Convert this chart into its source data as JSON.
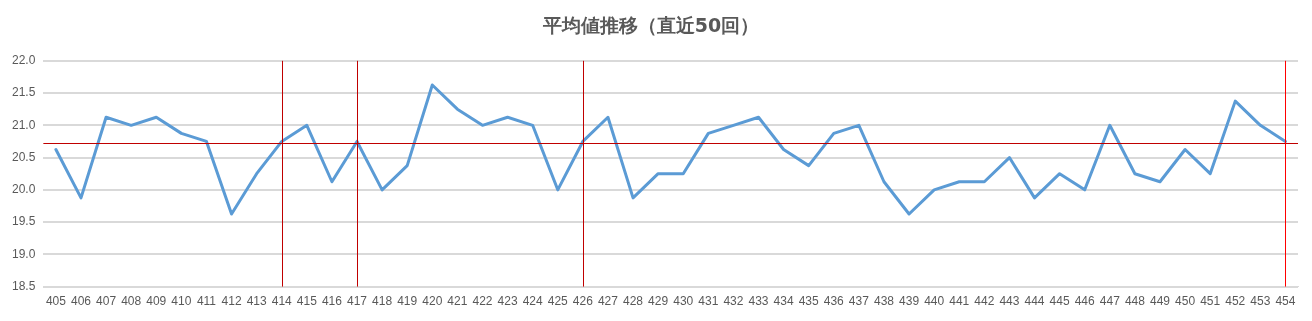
{
  "chart_data": {
    "type": "line",
    "title": "平均値推移（直近50回）",
    "categories": [
      "405",
      "406",
      "407",
      "408",
      "409",
      "410",
      "411",
      "412",
      "413",
      "414",
      "415",
      "416",
      "417",
      "418",
      "419",
      "420",
      "421",
      "422",
      "423",
      "424",
      "425",
      "426",
      "427",
      "428",
      "429",
      "430",
      "431",
      "432",
      "433",
      "434",
      "435",
      "436",
      "437",
      "438",
      "439",
      "440",
      "441",
      "442",
      "443",
      "444",
      "445",
      "446",
      "447",
      "448",
      "449",
      "450",
      "451",
      "452",
      "453",
      "454"
    ],
    "series": [
      {
        "color": "#5b9bd5",
        "values": [
          20.625,
          19.875,
          21.125,
          21.0,
          21.125,
          20.875,
          20.75,
          19.625,
          20.25,
          20.75,
          21.0,
          20.125,
          20.75,
          20.0,
          20.375,
          21.625,
          21.25,
          21.0,
          21.125,
          21.0,
          20.0,
          20.75,
          21.125,
          19.875,
          20.25,
          20.25,
          20.875,
          21.0,
          21.125,
          20.625,
          20.375,
          20.875,
          21.0,
          20.125,
          19.625,
          20.0,
          20.125,
          20.125,
          20.5,
          19.875,
          20.25,
          20.0,
          21.0,
          20.25,
          20.125,
          20.625,
          20.25,
          21.375,
          21.0,
          20.75
        ]
      }
    ],
    "ylim": [
      18.5,
      22.0
    ],
    "yticks": [
      {
        "value": 18.5,
        "label": "18.5"
      },
      {
        "value": 19,
        "label": "19.0"
      },
      {
        "value": 19.5,
        "label": "19.5"
      },
      {
        "value": 20,
        "label": "20.0"
      },
      {
        "value": 20.5,
        "label": "20.5"
      },
      {
        "value": 21,
        "label": "21.0"
      },
      {
        "value": 21.5,
        "label": "21.5"
      },
      {
        "value": 22,
        "label": "22.0"
      }
    ],
    "grid": "y",
    "legend": false,
    "marker": "none",
    "line_style": "solid",
    "ref_lines": [
      {
        "axis": "y",
        "value": 20.72,
        "color": "#c00000"
      },
      {
        "axis": "x",
        "value": "414",
        "color": "#c00000"
      },
      {
        "axis": "x",
        "value": "417",
        "color": "#c00000"
      },
      {
        "axis": "x",
        "value": "426",
        "color": "#c00000"
      },
      {
        "axis": "x",
        "value": "454",
        "color": "#ff0000"
      }
    ]
  }
}
